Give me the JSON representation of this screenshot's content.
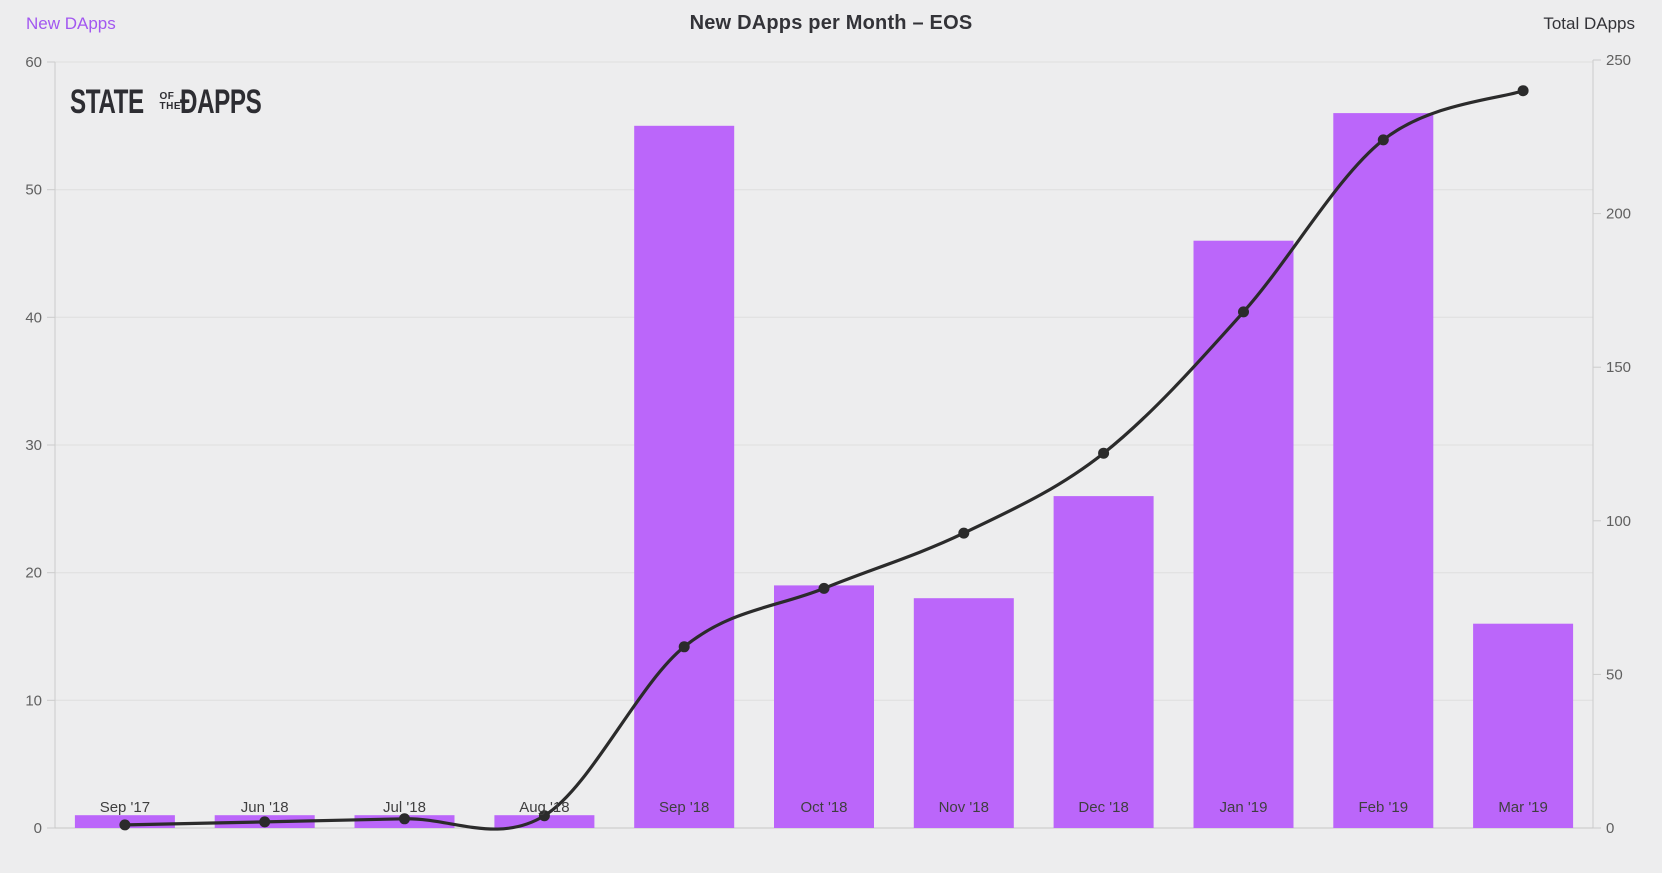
{
  "header": {
    "left_series_label": "New DApps",
    "title": "New DApps per Month – EOS",
    "right_series_label": "Total DApps"
  },
  "logo": {
    "word1": "STATE",
    "word2a": "OF",
    "word2b": "THE",
    "word3": "ĐAPPS"
  },
  "chart_data": {
    "type": "bar",
    "subtype": "dual-axis bar + cumulative line",
    "title": "New DApps per Month – EOS",
    "categories": [
      "Sep '17",
      "Jun '18",
      "Jul '18",
      "Aug '18",
      "Sep '18",
      "Oct '18",
      "Nov '18",
      "Dec '18",
      "Jan '19",
      "Feb '19",
      "Mar '19"
    ],
    "series": [
      {
        "name": "New DApps",
        "type": "bar",
        "axis": "left",
        "color": "#bb66fa",
        "values": [
          1,
          1,
          1,
          1,
          55,
          19,
          18,
          26,
          46,
          56,
          16
        ]
      },
      {
        "name": "Total DApps",
        "type": "line",
        "axis": "right",
        "color": "#2b2b2b",
        "values": [
          1,
          2,
          3,
          4,
          59,
          78,
          96,
          122,
          168,
          224,
          240
        ]
      }
    ],
    "left_axis": {
      "label": "New DApps",
      "min": 0,
      "max": 60,
      "ticks": [
        0,
        10,
        20,
        30,
        40,
        50,
        60
      ]
    },
    "right_axis": {
      "label": "Total DApps",
      "min": 0,
      "max": 250,
      "ticks": [
        0,
        50,
        100,
        150,
        200,
        250
      ]
    },
    "grid": "horizontal gridlines aligned to left-axis ticks",
    "legend_position": "axis titles in top corners",
    "colors": {
      "background": "#ededee",
      "bar": "#bb66fa",
      "line": "#2b2b2b",
      "gridline": "#dedede",
      "axis_line": "#cccccc",
      "tick_label": "#606060",
      "x_label": "#3f3f3f",
      "title": "#333338",
      "left_label": "#a257f0"
    }
  }
}
